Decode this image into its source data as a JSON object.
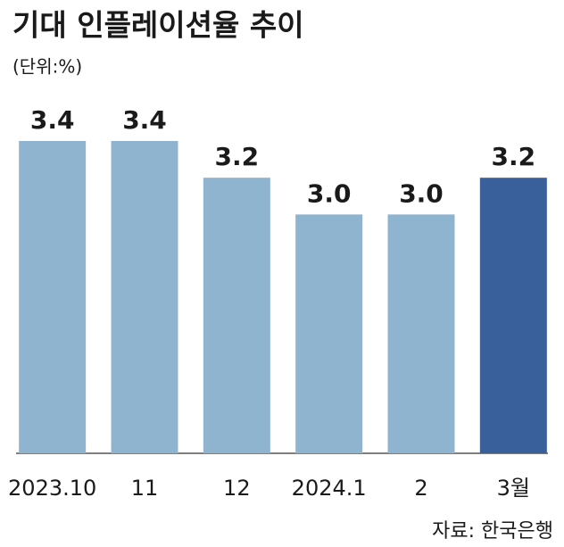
{
  "chart_data": {
    "type": "bar",
    "title": "기대 인플레이션율 추이",
    "subtitle": "(단위:%)",
    "source": "자료: 한국은행",
    "categories": [
      "2023.10",
      "11",
      "12",
      "2024.1",
      "2",
      "3월"
    ],
    "values": [
      3.4,
      3.4,
      3.2,
      3.0,
      3.0,
      3.2
    ],
    "value_labels": [
      "3.4",
      "3.4",
      "3.2",
      "3.0",
      "3.0",
      "3.2"
    ],
    "colors": [
      "#8fb4d0",
      "#8fb4d0",
      "#8fb4d0",
      "#8fb4d0",
      "#8fb4d0",
      "#3a609c"
    ],
    "ylim": [
      1.7,
      3.4
    ]
  }
}
